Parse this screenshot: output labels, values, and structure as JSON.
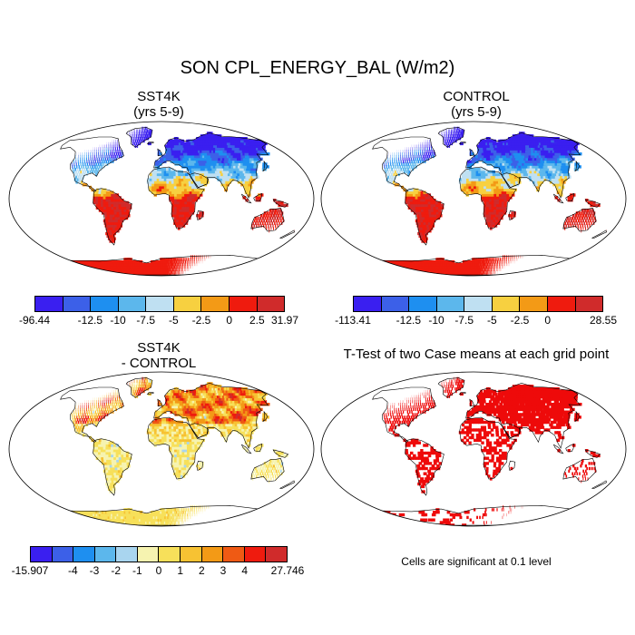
{
  "main_title": "SON CPL_ENERGY_BAL (W/m2)",
  "panels": [
    {
      "title_line1": "SST4K",
      "title_line2": "(yrs 5-9)",
      "field": "warm",
      "bar": "bar1",
      "colorbar_labels": [
        "-96.44",
        "-12.5",
        "-10",
        "-7.5",
        "-5",
        "-2.5",
        "0",
        "2.5",
        "31.97"
      ]
    },
    {
      "title_line1": "CONTROL",
      "title_line2": "(yrs 5-9)",
      "field": "warm",
      "bar": "bar2",
      "colorbar_labels": [
        "-113.41",
        "-12.5",
        "-10",
        "-7.5",
        "-5",
        "-2.5",
        "0",
        "28.55"
      ]
    },
    {
      "title_line1": "SST4K",
      "title_line2": "- CONTROL",
      "field": "diff",
      "bar": "bar3",
      "colorbar_labels": [
        "-15.907",
        "-4",
        "-3",
        "-2",
        "-1",
        "0",
        "1",
        "2",
        "3",
        "4",
        "27.746"
      ]
    },
    {
      "title_line1": "T-Test of two Case means at each grid point",
      "title_line2": "",
      "field": "ttest"
    }
  ],
  "colors": {
    "bar_abs": [
      "#3a1ff0",
      "#3c60e8",
      "#1e8ff0",
      "#5cb7ec",
      "#bfe0f2",
      "#f7d040",
      "#f39a16",
      "#ef1b0e",
      "#d02b2b"
    ],
    "bar_abs2": [
      "#3a1ff0",
      "#3c60e8",
      "#1e8ff0",
      "#5cb7ec",
      "#bfe0f2",
      "#f7d040",
      "#f39a16",
      "#ef1b0e",
      "#d02b2b"
    ],
    "bar_diff": [
      "#3a1ff0",
      "#3c60e8",
      "#1e8ff0",
      "#5cb7ec",
      "#a9d5ef",
      "#f6f3b0",
      "#f7e05a",
      "#f7c233",
      "#f39a16",
      "#ef5a14",
      "#ef1b0e",
      "#d02b2b"
    ],
    "significant": "#ee0a0a"
  },
  "note": "Cells are significant at 0.1 level"
}
